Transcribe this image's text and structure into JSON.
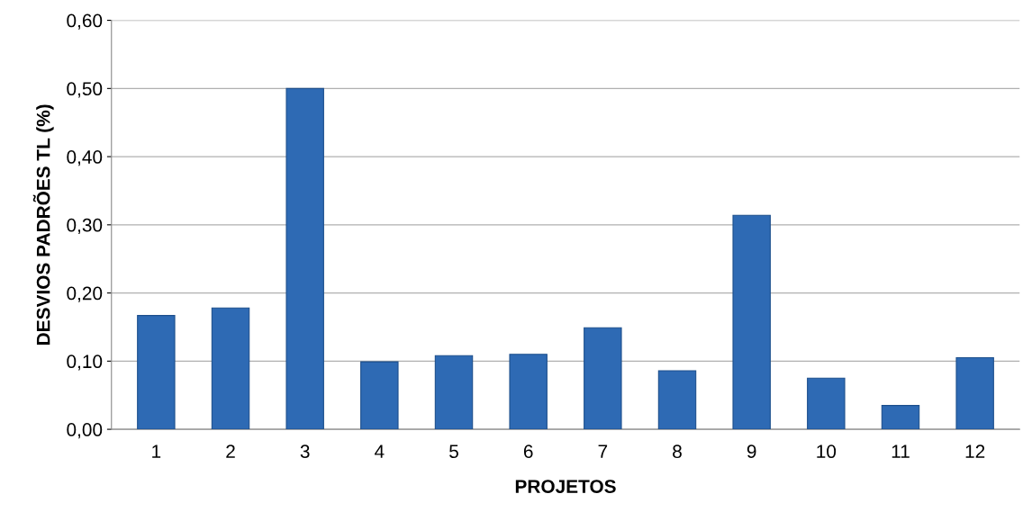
{
  "chart_data": {
    "type": "bar",
    "xlabel": "PROJETOS",
    "ylabel": "DESVIOS PADRÕES TL (%)",
    "categories": [
      "1",
      "2",
      "3",
      "4",
      "5",
      "6",
      "7",
      "8",
      "9",
      "10",
      "11",
      "12"
    ],
    "values": [
      0.167,
      0.178,
      0.5,
      0.099,
      0.108,
      0.11,
      0.149,
      0.086,
      0.314,
      0.075,
      0.035,
      0.105
    ],
    "color": "#2e6ab4",
    "ylim": [
      0,
      0.6
    ],
    "yticks": [
      {
        "value": 0,
        "label": "0,00"
      },
      {
        "value": 0.1,
        "label": "0,10"
      },
      {
        "value": 0.2,
        "label": "0,20"
      },
      {
        "value": 0.3,
        "label": "0,30"
      },
      {
        "value": 0.4,
        "label": "0,40"
      },
      {
        "value": 0.5,
        "label": "0,50"
      },
      {
        "value": 0.6,
        "label": "0,60"
      }
    ],
    "grid": "y",
    "legend": false
  }
}
